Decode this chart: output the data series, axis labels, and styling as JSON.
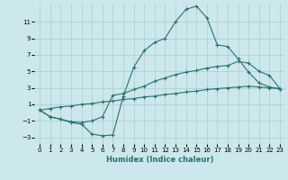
{
  "xlabel": "Humidex (Indice chaleur)",
  "ylabel": "",
  "bg_color": "#cce8ec",
  "grid_color": "#aacccc",
  "line_color": "#2a7070",
  "xlim": [
    -0.5,
    23.5
  ],
  "ylim": [
    -3.8,
    13.2
  ],
  "yticks": [
    -3,
    -1,
    1,
    3,
    5,
    7,
    9,
    11
  ],
  "xticks": [
    0,
    1,
    2,
    3,
    4,
    5,
    6,
    7,
    8,
    9,
    10,
    11,
    12,
    13,
    14,
    15,
    16,
    17,
    18,
    19,
    20,
    21,
    22,
    23
  ],
  "line1_x": [
    0,
    1,
    2,
    3,
    4,
    5,
    6,
    7,
    8,
    9,
    10,
    11,
    12,
    13,
    14,
    15,
    16,
    17,
    18,
    19,
    20,
    21,
    22,
    23
  ],
  "line1_y": [
    0.3,
    -0.5,
    -0.8,
    -1.2,
    -1.4,
    -2.6,
    -2.8,
    -2.7,
    2.0,
    5.5,
    7.5,
    8.5,
    9.0,
    11.0,
    12.5,
    12.9,
    11.5,
    8.2,
    8.0,
    6.5,
    4.9,
    3.6,
    3.1,
    2.9
  ],
  "line2_x": [
    0,
    1,
    2,
    3,
    4,
    5,
    6,
    7,
    8,
    9,
    10,
    11,
    12,
    13,
    14,
    15,
    16,
    17,
    18,
    19,
    20,
    21,
    22,
    23
  ],
  "line2_y": [
    0.3,
    -0.5,
    -0.8,
    -1.1,
    -1.2,
    -1.0,
    -0.5,
    2.1,
    2.3,
    2.8,
    3.2,
    3.8,
    4.2,
    4.6,
    4.9,
    5.1,
    5.4,
    5.6,
    5.7,
    6.2,
    6.0,
    5.0,
    4.5,
    2.9
  ],
  "line3_x": [
    0,
    1,
    2,
    3,
    4,
    5,
    6,
    7,
    8,
    9,
    10,
    11,
    12,
    13,
    14,
    15,
    16,
    17,
    18,
    19,
    20,
    21,
    22,
    23
  ],
  "line3_y": [
    0.3,
    0.5,
    0.7,
    0.8,
    1.0,
    1.1,
    1.3,
    1.4,
    1.6,
    1.7,
    1.9,
    2.0,
    2.2,
    2.3,
    2.5,
    2.6,
    2.8,
    2.9,
    3.0,
    3.1,
    3.2,
    3.1,
    3.0,
    2.9
  ]
}
